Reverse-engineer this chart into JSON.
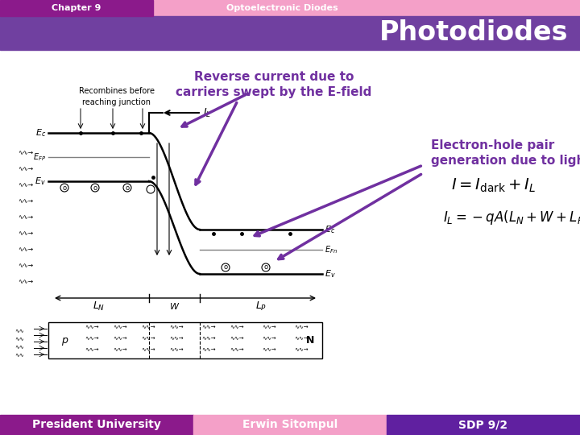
{
  "title_bar_left_text": "Chapter 9",
  "title_bar_right_text": "Optoelectronic Diodes",
  "title_bar_left_color": "#8B1A8B",
  "title_bar_right_color": "#F4A0C8",
  "subtitle_bar_color": "#7040A0",
  "subtitle_text": "Photodiodes",
  "subtitle_text_color": "#ffffff",
  "footer_left_text": "President University",
  "footer_center_text": "Erwin Sitompul",
  "footer_right_text": "SDP 9/2",
  "footer_left_color": "#8B1A8B",
  "footer_center_color": "#F4A0C8",
  "footer_right_color": "#6020A0",
  "footer_text_color": "#ffffff",
  "bg_color": "#ffffff",
  "annotation1_text": "Reverse current due to\ncarriers swept by the E-field",
  "annotation2_text": "Electron-hole pair\ngeneration due to light",
  "annotation_color": "#7030A0",
  "recombines_text": "Recombines before\nreaching junction"
}
